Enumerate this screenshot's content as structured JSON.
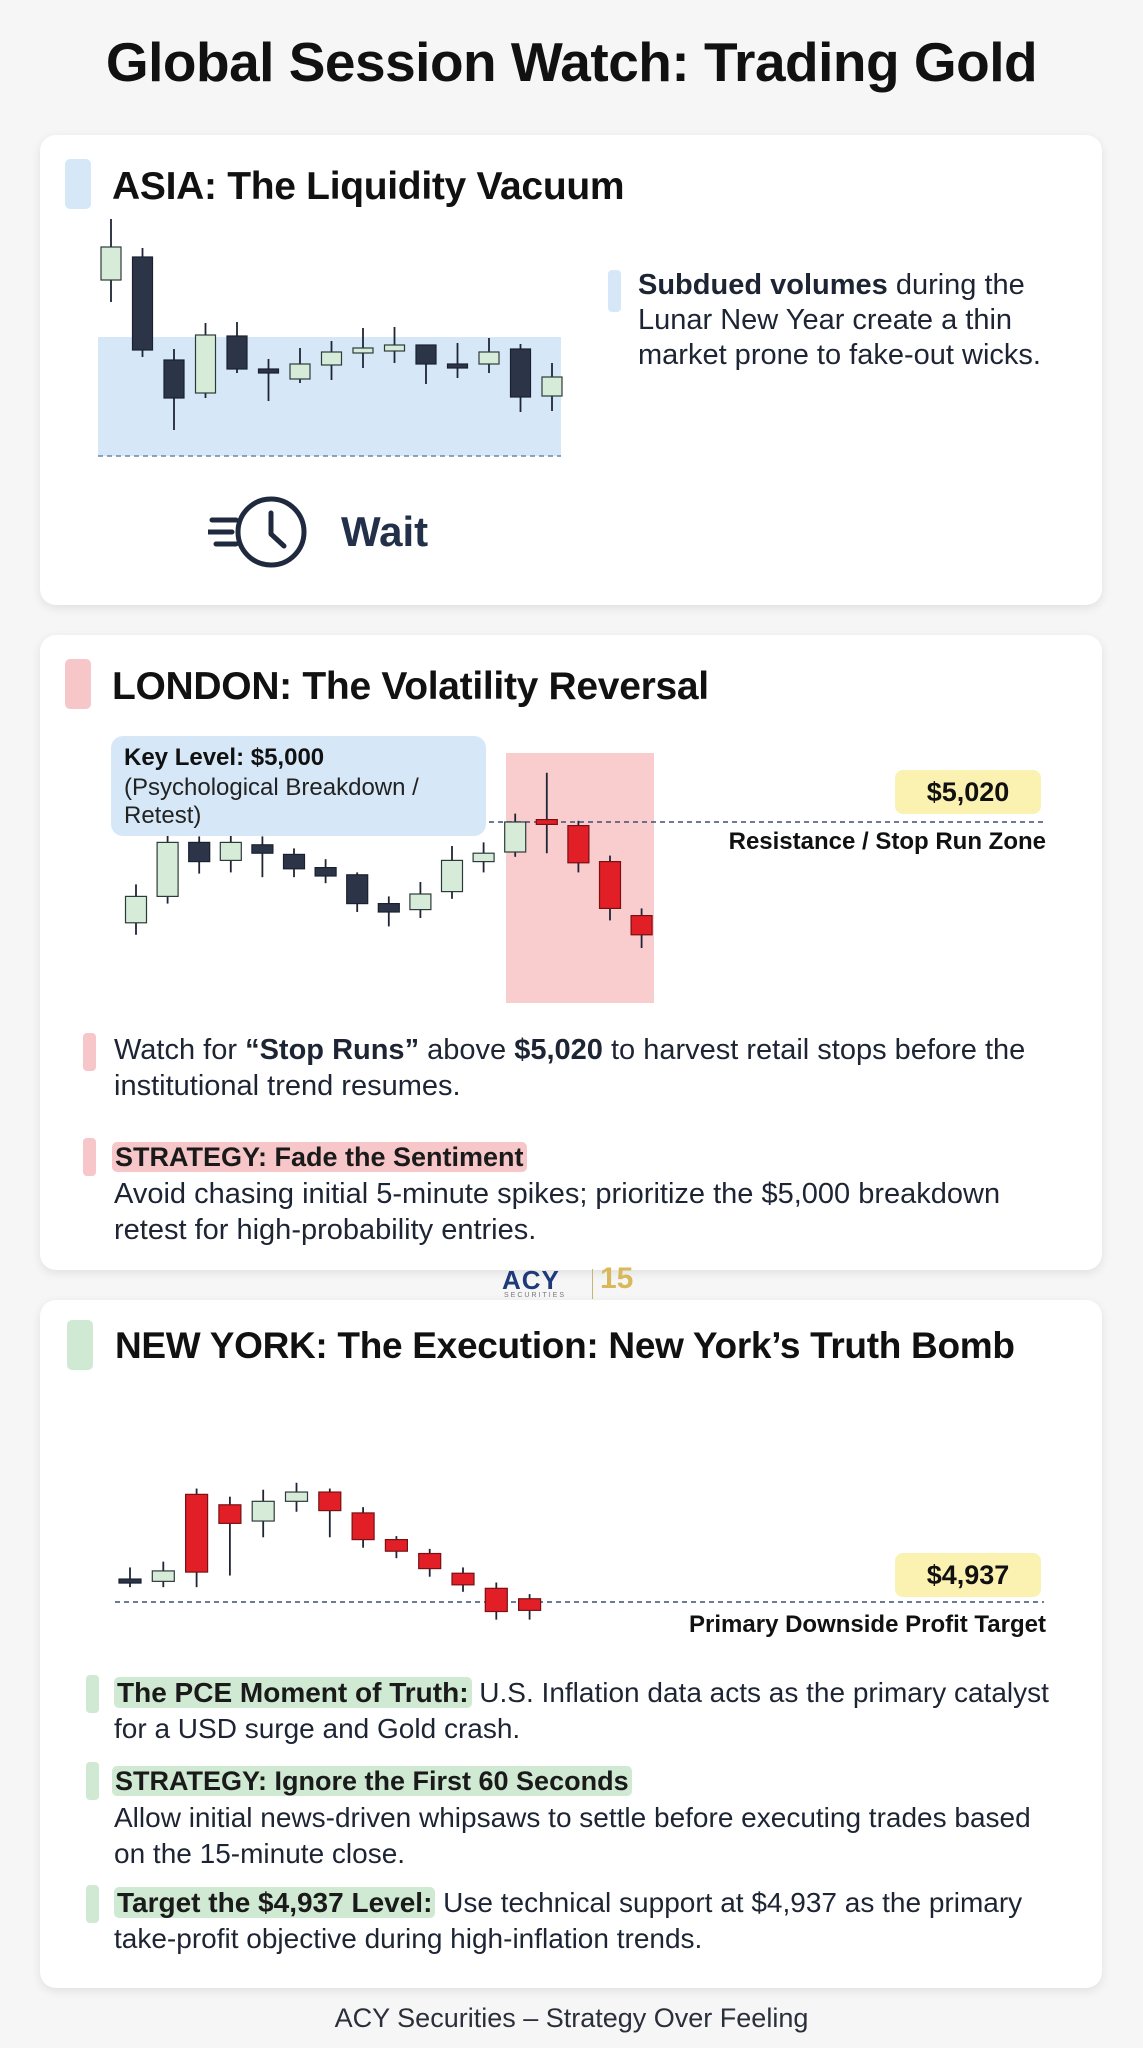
{
  "title": "Global Session Watch: Trading Gold",
  "colors": {
    "bull": "#d6ecd9",
    "bear": "#2c3448",
    "red": "#e21f26",
    "asia_zone": "#d6e8f8",
    "london_zone": "#f8c4c6",
    "price_tag": "#fbf1b0"
  },
  "asia": {
    "title": "ASIA: The Liquidity Vacuum",
    "desc_bold": "Subdued volumes",
    "desc_rest": " during the Lunar New Year create a thin market prone to fake-out wicks.",
    "action_icon": "fast-clock-icon",
    "action_label": "Wait",
    "candles": [
      {
        "t": "bull",
        "o": 1.5,
        "c": 4.8,
        "h": 7.6,
        "l": -0.7
      },
      {
        "t": "bear",
        "o": 3.8,
        "c": -5.5,
        "h": 4.7,
        "l": -6.2
      },
      {
        "t": "bear",
        "o": -6.5,
        "c": -10.3,
        "h": -5.4,
        "l": -13.5
      },
      {
        "t": "bull",
        "o": -9.8,
        "c": -4.0,
        "h": -2.8,
        "l": -10.3
      },
      {
        "t": "bear",
        "o": -4.1,
        "c": -7.4,
        "h": -2.7,
        "l": -7.8
      },
      {
        "t": "bear",
        "o": -7.4,
        "c": -7.7,
        "h": -6.4,
        "l": -10.6
      },
      {
        "t": "bull",
        "o": -8.4,
        "c": -6.9,
        "h": -5.3,
        "l": -8.8
      },
      {
        "t": "bull",
        "o": -7.0,
        "c": -5.7,
        "h": -4.6,
        "l": -8.5
      },
      {
        "t": "bull",
        "o": -5.8,
        "c": -5.3,
        "h": -3.3,
        "l": -7.3
      },
      {
        "t": "bull",
        "o": -5.6,
        "c": -5.0,
        "h": -3.2,
        "l": -6.8
      },
      {
        "t": "bear",
        "o": -5.0,
        "c": -6.9,
        "h": -5.0,
        "l": -8.9
      },
      {
        "t": "bear",
        "o": -6.9,
        "c": -7.0,
        "h": -4.8,
        "l": -8.3
      },
      {
        "t": "bull",
        "o": -6.9,
        "c": -5.7,
        "h": -4.3,
        "l": -7.8
      },
      {
        "t": "bear",
        "o": -5.4,
        "c": -10.2,
        "h": -4.9,
        "l": -11.7
      },
      {
        "t": "bull",
        "o": -10.1,
        "c": -8.2,
        "h": -6.8,
        "l": -11.6
      }
    ]
  },
  "london": {
    "title": "LONDON: The Volatility Reversal",
    "key_title": "Key Level: $5,000",
    "key_text": "(Psychological Breakdown / Retest)",
    "price_tag": "$5,020",
    "zone_label": "Resistance / Stop Run Zone",
    "price_value": 5020,
    "bullet_pre": "Watch for ",
    "bullet_bold1": "“Stop Runs”",
    "bullet_mid": " above ",
    "bullet_bold2": "$5,020",
    "bullet_post": " to harvest retail stops before the institutional trend resumes.",
    "strategy_title": "STRATEGY: Fade the Sentiment",
    "strategy_text": "Avoid chasing initial 5-minute spikes; prioritize the $5,000 breakdown retest for high-probability entries.",
    "candles": [
      {
        "t": "bull",
        "o": 4936,
        "c": 4958,
        "h": 4968,
        "l": 4926
      },
      {
        "t": "bull",
        "o": 4958,
        "c": 5003,
        "h": 5015,
        "l": 4952
      },
      {
        "t": "bear",
        "o": 5003,
        "c": 4987,
        "h": 5008,
        "l": 4977
      },
      {
        "t": "bull",
        "o": 4988,
        "c": 5003,
        "h": 5014,
        "l": 4978
      },
      {
        "t": "bear",
        "o": 5001,
        "c": 4994,
        "h": 5008,
        "l": 4974
      },
      {
        "t": "bear",
        "o": 4993,
        "c": 4981,
        "h": 4998,
        "l": 4974
      },
      {
        "t": "bear",
        "o": 4982,
        "c": 4975,
        "h": 4989,
        "l": 4969
      },
      {
        "t": "bear",
        "o": 4976,
        "c": 4952,
        "h": 4978,
        "l": 4945
      },
      {
        "t": "bear",
        "o": 4952,
        "c": 4945,
        "h": 4958,
        "l": 4933
      },
      {
        "t": "bull",
        "o": 4947,
        "c": 4960,
        "h": 4970,
        "l": 4940
      },
      {
        "t": "bull",
        "o": 4962,
        "c": 4988,
        "h": 5000,
        "l": 4956
      },
      {
        "t": "bull",
        "o": 4987,
        "c": 4994,
        "h": 5003,
        "l": 4978
      },
      {
        "t": "bull",
        "o": 4995,
        "c": 5020,
        "h": 5027,
        "l": 4991
      },
      {
        "t": "red",
        "o": 5022,
        "c": 5018,
        "h": 5061,
        "l": 4994
      },
      {
        "t": "red",
        "o": 5017,
        "c": 4986,
        "h": 5021,
        "l": 4978
      },
      {
        "t": "red",
        "o": 4987,
        "c": 4948,
        "h": 4992,
        "l": 4938
      },
      {
        "t": "red",
        "o": 4942,
        "c": 4926,
        "h": 4948,
        "l": 4915
      }
    ]
  },
  "ny": {
    "title": "NEW YORK: The Execution: New York’s Truth Bomb",
    "price_tag": "$4,937",
    "zone_label": "Primary Downside Profit Target",
    "price_value": 4937,
    "b1_bold": "The PCE Moment of Truth:",
    "b1_text": " U.S. Inflation data acts as the primary catalyst for a USD surge and Gold crash.",
    "b2_bold": "STRATEGY: Ignore the First 60 Seconds",
    "b2_text": "Allow initial news-driven whipsaws to settle before executing trades based on the 15-minute close.",
    "b3_bold": "Target the $4,937 Level:",
    "b3_text": " Use technical support at $4,937 as the primary take-profit objective during high-inflation trends.",
    "candles": [
      {
        "t": "bear",
        "o": 4956,
        "c": 4953,
        "h": 4966,
        "l": 4949
      },
      {
        "t": "bull",
        "o": 4954,
        "c": 4963,
        "h": 4971,
        "l": 4949
      },
      {
        "t": "red",
        "o": 5029,
        "c": 4962,
        "h": 5034,
        "l": 4949
      },
      {
        "t": "red",
        "o": 5020,
        "c": 5004,
        "h": 5027,
        "l": 4959
      },
      {
        "t": "bull",
        "o": 5006,
        "c": 5023,
        "h": 5033,
        "l": 4992
      },
      {
        "t": "bull",
        "o": 5023,
        "c": 5031,
        "h": 5039,
        "l": 5014
      },
      {
        "t": "red",
        "o": 5031,
        "c": 5015,
        "h": 5034,
        "l": 4992
      },
      {
        "t": "red",
        "o": 5013,
        "c": 4990,
        "h": 5018,
        "l": 4983
      },
      {
        "t": "red",
        "o": 4990,
        "c": 4980,
        "h": 4993,
        "l": 4974
      },
      {
        "t": "red",
        "o": 4978,
        "c": 4965,
        "h": 4982,
        "l": 4958
      },
      {
        "t": "red",
        "o": 4961,
        "c": 4951,
        "h": 4966,
        "l": 4945
      },
      {
        "t": "red",
        "o": 4948,
        "c": 4928,
        "h": 4953,
        "l": 4921
      },
      {
        "t": "red",
        "o": 4939,
        "c": 4929,
        "h": 4943,
        "l": 4921
      }
    ]
  },
  "logo": {
    "main": "ACY",
    "sub": "SECURITIES",
    "years": "15"
  },
  "footer": "ACY Securities – Strategy Over Feeling"
}
